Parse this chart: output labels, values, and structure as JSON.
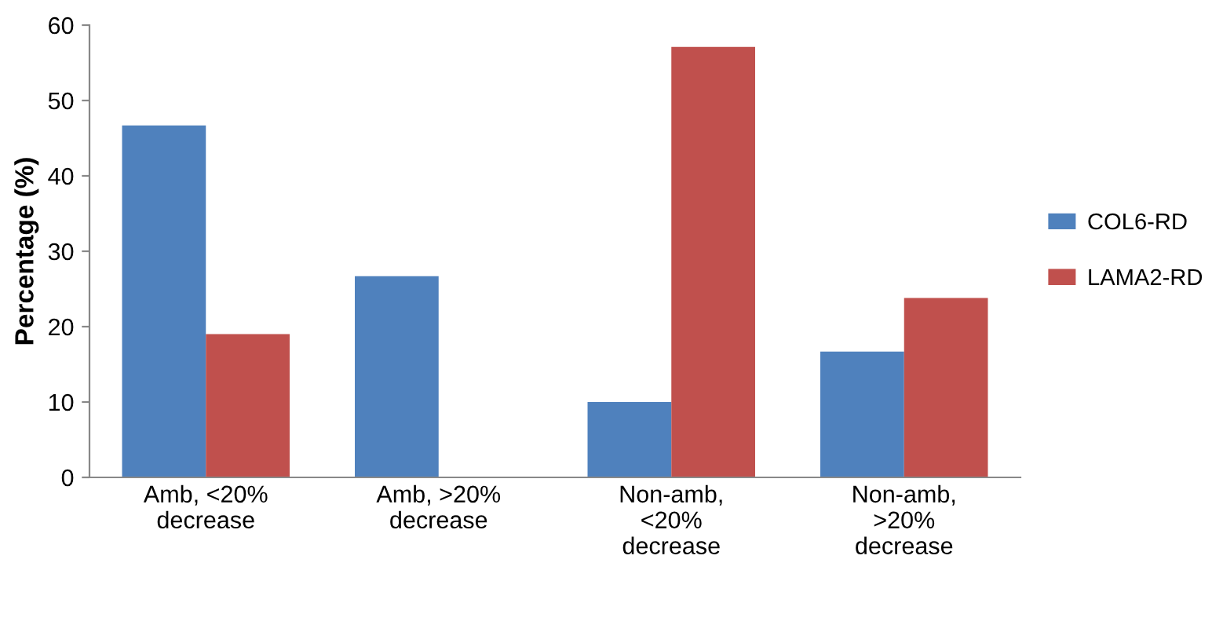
{
  "chart_data": {
    "type": "bar",
    "ylabel": "Percentage (%)",
    "categories": [
      "Amb, <20%\ndecrease",
      "Amb, >20%\ndecrease",
      "Non-amb,\n<20%\ndecrease",
      "Non-amb,\n>20%\ndecrease"
    ],
    "series": [
      {
        "name": "COL6-RD",
        "color": "#4f81bd",
        "values": [
          46.7,
          26.7,
          10,
          16.7
        ]
      },
      {
        "name": "LAMA2-RD",
        "color": "#c0504d",
        "values": [
          19,
          0,
          57.1,
          23.8
        ]
      }
    ],
    "ylim": [
      0,
      60
    ],
    "yticks": [
      0,
      10,
      20,
      30,
      40,
      50,
      60
    ],
    "grid": false,
    "legend": "right"
  }
}
